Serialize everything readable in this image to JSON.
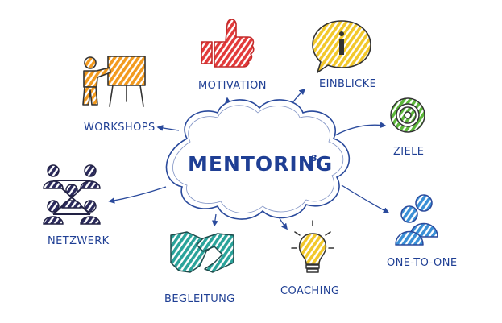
{
  "center": {
    "title": "MENTORING",
    "superscript": "3"
  },
  "nodes": {
    "motivation": "MOTIVATION",
    "einblicke": "EINBLICKE",
    "workshops": "WORKSHOPS",
    "ziele": "ZIELE",
    "netzwerk": "NETZWERK",
    "one_to_one": "ONE-TO-ONE",
    "begleitung": "BEGLEITUNG",
    "coaching": "COACHING"
  },
  "icons": {
    "motivation": "thumbs-up-icon",
    "einblicke": "info-speech-bubble-icon",
    "workshops": "presenter-easel-icon",
    "ziele": "target-icon",
    "netzwerk": "network-people-icon",
    "one_to_one": "two-people-icon",
    "begleitung": "handshake-icon",
    "coaching": "lightbulb-icon"
  },
  "colors": {
    "text": "#1f3f94",
    "lines": "#2a4a9c",
    "red": "#e23a3a",
    "yellow": "#f2c82b",
    "orange": "#f29a1f",
    "green": "#5cb73a",
    "navy": "#2b2a5c",
    "blue": "#3a8fd6",
    "teal": "#2aa39a"
  }
}
